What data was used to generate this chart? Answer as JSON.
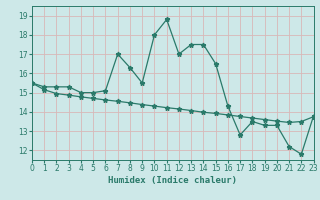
{
  "title": "",
  "xlabel": "Humidex (Indice chaleur)",
  "ylabel": "",
  "bg_color": "#cde8e8",
  "line_color": "#2a7a6a",
  "grid_color": "#b8d8d8",
  "x_data": [
    0,
    1,
    2,
    3,
    4,
    5,
    6,
    7,
    8,
    9,
    10,
    11,
    12,
    13,
    14,
    15,
    16,
    17,
    18,
    19,
    20,
    21,
    22,
    23
  ],
  "y_line1": [
    15.5,
    15.3,
    15.3,
    15.3,
    15.0,
    15.0,
    15.1,
    17.0,
    16.3,
    15.5,
    18.0,
    18.8,
    17.0,
    17.5,
    17.5,
    16.5,
    14.3,
    12.8,
    13.5,
    13.3,
    13.3,
    12.2,
    11.8,
    13.8
  ],
  "y_line2": [
    15.5,
    15.15,
    14.95,
    14.87,
    14.78,
    14.7,
    14.62,
    14.55,
    14.47,
    14.38,
    14.3,
    14.22,
    14.15,
    14.07,
    13.98,
    13.92,
    13.84,
    13.76,
    13.68,
    13.6,
    13.52,
    13.45,
    13.5,
    13.75
  ],
  "xlim": [
    0,
    23
  ],
  "ylim": [
    11.5,
    19.5
  ],
  "yticks": [
    12,
    13,
    14,
    15,
    16,
    17,
    18,
    19
  ],
  "xticks": [
    0,
    1,
    2,
    3,
    4,
    5,
    6,
    7,
    8,
    9,
    10,
    11,
    12,
    13,
    14,
    15,
    16,
    17,
    18,
    19,
    20,
    21,
    22,
    23
  ],
  "marker": "*",
  "markersize": 3.5,
  "linewidth": 0.9
}
